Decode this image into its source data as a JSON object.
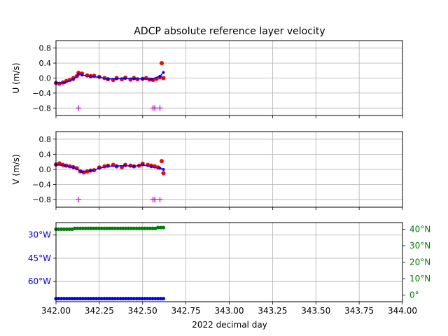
{
  "chart_data": {
    "type": "scatter",
    "title": "ADCP absolute reference layer velocity",
    "xlabel": "2022 decimal day",
    "xlim": [
      342.0,
      344.0
    ],
    "x_ticks": [
      "342.00",
      "342.25",
      "342.50",
      "342.75",
      "343.00",
      "343.25",
      "343.50",
      "343.75",
      "344.00"
    ],
    "grid": true,
    "panels": [
      {
        "id": "u",
        "ylabel": "U (m/s)",
        "ylim": [
          -1.0,
          1.0
        ],
        "y_ticks": [
          "0.8",
          "0.4",
          "0.0",
          "−0.4",
          "−0.8"
        ],
        "series": [
          {
            "color": "#ff0000",
            "x": [
              342.0,
              342.02,
              342.04,
              342.06,
              342.08,
              342.1,
              342.12,
              342.13,
              342.15,
              342.18,
              342.2,
              342.22,
              342.25,
              342.28,
              342.3,
              342.33,
              342.35,
              342.38,
              342.4,
              342.43,
              342.45,
              342.47,
              342.5,
              342.52,
              342.54,
              342.56,
              342.58,
              342.6,
              342.61,
              342.62
            ],
            "y": [
              -0.13,
              -0.15,
              -0.12,
              -0.08,
              -0.05,
              0.0,
              0.05,
              0.14,
              0.12,
              0.07,
              0.05,
              0.06,
              0.03,
              0.0,
              -0.03,
              -0.05,
              0.0,
              -0.03,
              0.01,
              -0.04,
              0.0,
              -0.03,
              -0.02,
              0.0,
              -0.04,
              -0.05,
              -0.02,
              0.02,
              0.4,
              0.0
            ]
          },
          {
            "color": "#0000ff",
            "x": [
              342.0,
              342.05,
              342.1,
              342.13,
              342.15,
              342.2,
              342.25,
              342.3,
              342.35,
              342.4,
              342.45,
              342.5,
              342.55,
              342.6,
              342.62
            ],
            "y": [
              -0.13,
              -0.12,
              -0.04,
              0.1,
              0.08,
              0.04,
              0.02,
              -0.02,
              -0.02,
              -0.01,
              -0.02,
              -0.02,
              -0.03,
              0.05,
              0.15
            ]
          },
          {
            "color": "#cc00cc",
            "marker": "plus",
            "x": [
              342.13,
              342.56,
              342.57,
              342.6
            ],
            "y": [
              -0.8,
              -0.8,
              -0.8,
              -0.8
            ]
          }
        ]
      },
      {
        "id": "v",
        "ylabel": "V (m/s)",
        "ylim": [
          -1.0,
          1.0
        ],
        "y_ticks": [
          "0.8",
          "0.4",
          "0.0",
          "−0.4",
          "−0.8"
        ],
        "series": [
          {
            "color": "#ff0000",
            "x": [
              342.0,
              342.02,
              342.04,
              342.06,
              342.08,
              342.1,
              342.12,
              342.14,
              342.16,
              342.18,
              342.2,
              342.22,
              342.25,
              342.28,
              342.3,
              342.33,
              342.35,
              342.38,
              342.4,
              342.43,
              342.45,
              342.48,
              342.5,
              342.53,
              342.55,
              342.57,
              342.59,
              342.61,
              342.62
            ],
            "y": [
              0.13,
              0.16,
              0.12,
              0.1,
              0.08,
              0.06,
              0.03,
              -0.05,
              -0.08,
              -0.05,
              -0.03,
              -0.02,
              0.05,
              0.08,
              0.1,
              0.12,
              0.08,
              0.06,
              0.12,
              0.1,
              0.08,
              0.1,
              0.15,
              0.12,
              0.1,
              0.08,
              0.05,
              0.22,
              -0.1
            ]
          },
          {
            "color": "#0000ff",
            "x": [
              342.0,
              342.05,
              342.1,
              342.15,
              342.2,
              342.25,
              342.3,
              342.35,
              342.4,
              342.45,
              342.5,
              342.55,
              342.6,
              342.62
            ],
            "y": [
              0.12,
              0.1,
              0.05,
              -0.06,
              -0.04,
              0.03,
              0.08,
              0.09,
              0.1,
              0.08,
              0.12,
              0.07,
              0.03,
              0.0
            ]
          },
          {
            "color": "#cc00cc",
            "marker": "plus",
            "x": [
              342.13,
              342.56,
              342.57,
              342.6
            ],
            "y": [
              -0.8,
              -0.8,
              -0.8,
              -0.8
            ]
          }
        ]
      },
      {
        "id": "pos",
        "ylim_left": [
          -73,
          -22
        ],
        "y_ticks_left": [
          {
            "v": -30,
            "label": "30°W"
          },
          {
            "v": -45,
            "label": "45°W"
          },
          {
            "v": -60,
            "label": "60°W"
          }
        ],
        "ylim_right": [
          -4,
          44
        ],
        "y_ticks_right": [
          {
            "v": 40,
            "label": "40°N"
          },
          {
            "v": 30,
            "label": "30°N"
          },
          {
            "v": 20,
            "label": "20°N"
          },
          {
            "v": 10,
            "label": "10°N"
          },
          {
            "v": 0,
            "label": "0°"
          }
        ],
        "left_color": "#0000ff",
        "right_color": "#008000",
        "lon": {
          "x_start": 342.0,
          "x_end": 342.62,
          "value": -71
        },
        "lat": {
          "x_start": 342.0,
          "x_end": 342.62,
          "values_start": 40.0,
          "values_mid": 40.5,
          "value_end": 41.0
        }
      }
    ]
  }
}
